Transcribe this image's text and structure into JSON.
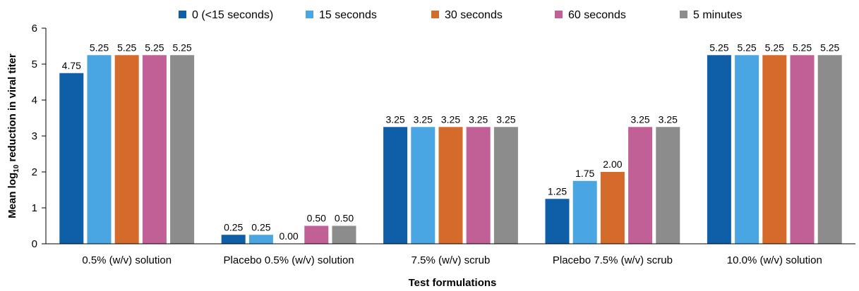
{
  "chart_data": {
    "type": "bar",
    "categories": [
      "0.5% (w/v) solution",
      "Placebo 0.5% (w/v) solution",
      "7.5% (w/v) scrub",
      "Placebo 7.5% (w/v) scrub",
      "10.0% (w/v) solution"
    ],
    "series": [
      {
        "name": "0 (<15 seconds)",
        "color": "#0e5ea8",
        "values": [
          4.75,
          0.25,
          3.25,
          1.25,
          5.25
        ],
        "labels": [
          "4.75",
          "0.25",
          "3.25",
          "1.25",
          "5.25"
        ]
      },
      {
        "name": "15 seconds",
        "color": "#4aa6e3",
        "values": [
          5.25,
          0.25,
          3.25,
          1.75,
          5.25
        ],
        "labels": [
          "5.25",
          "0.25",
          "3.25",
          "1.75",
          "5.25"
        ]
      },
      {
        "name": "30 seconds",
        "color": "#d56b2a",
        "values": [
          5.25,
          0.0,
          3.25,
          2.0,
          5.25
        ],
        "labels": [
          "5.25",
          "0.00",
          "3.25",
          "2.00",
          "5.25"
        ]
      },
      {
        "name": "60 seconds",
        "color": "#c06096",
        "values": [
          5.25,
          0.5,
          3.25,
          3.25,
          5.25
        ],
        "labels": [
          "5.25",
          "0.50",
          "3.25",
          "3.25",
          "5.25"
        ]
      },
      {
        "name": "5 minutes",
        "color": "#8c8c8c",
        "values": [
          5.25,
          0.5,
          3.25,
          3.25,
          5.25
        ],
        "labels": [
          "5.25",
          "0.50",
          "3.25",
          "3.25",
          "5.25"
        ]
      }
    ],
    "yticks": [
      "0",
      "1",
      "2",
      "3",
      "4",
      "5",
      "6"
    ],
    "ylim": [
      0,
      6
    ],
    "ylabel_main": "Mean log",
    "ylabel_sub": "10",
    "ylabel_rest": " reduction in viral titer",
    "xlabel": "Test formulations",
    "legend_position": "top",
    "grid": false
  }
}
